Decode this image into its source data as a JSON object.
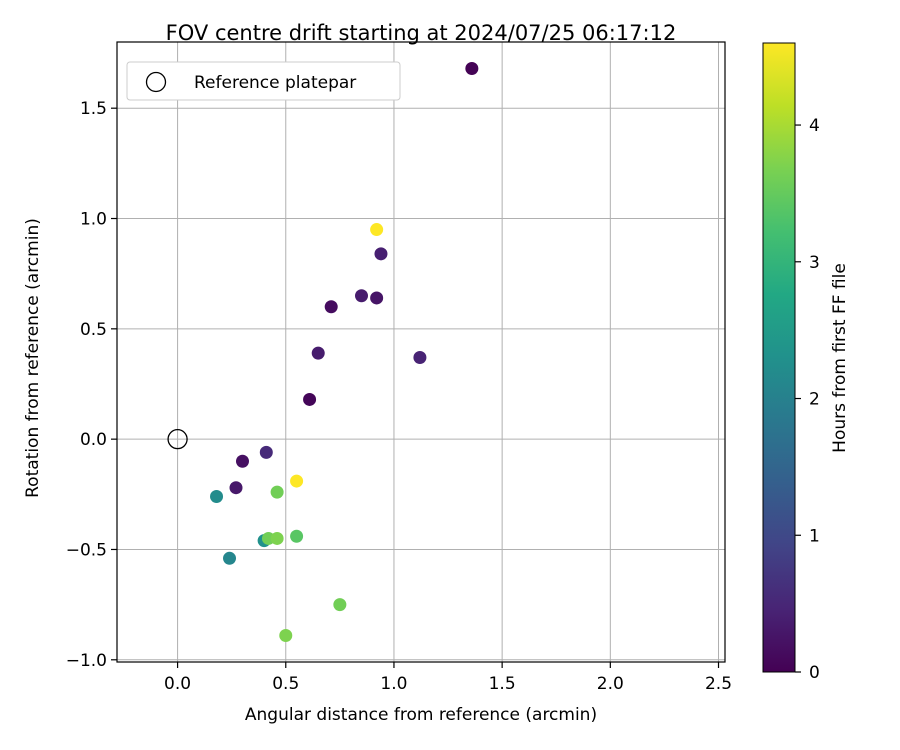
{
  "chart_data": {
    "type": "scatter",
    "title": "FOV centre drift starting at 2024/07/25 06:17:12",
    "xlabel": "Angular distance from reference (arcmin)",
    "ylabel": "Rotation from reference (arcmin)",
    "xlim": [
      -0.28,
      2.53
    ],
    "ylim": [
      -1.01,
      1.8
    ],
    "xticks": [
      0.0,
      0.5,
      1.0,
      1.5,
      2.0,
      2.5
    ],
    "xtick_labels": [
      "0.0",
      "0.5",
      "1.0",
      "1.5",
      "2.0",
      "2.5"
    ],
    "yticks": [
      -1.0,
      -0.5,
      0.0,
      0.5,
      1.0,
      1.5
    ],
    "ytick_labels": [
      "−1.0",
      "−0.5",
      "0.0",
      "0.5",
      "1.0",
      "1.5"
    ],
    "grid": true,
    "legend": {
      "position": "top-left",
      "entries": [
        "Reference platepar"
      ]
    },
    "reference_point": {
      "x": 0.0,
      "y": 0.0
    },
    "colorbar": {
      "label": "Hours from first FF file",
      "colormap": "viridis",
      "range": [
        0,
        4.6
      ],
      "ticks": [
        0,
        1,
        2,
        3,
        4
      ],
      "tick_labels": [
        "0",
        "1",
        "2",
        "3",
        "4"
      ]
    },
    "points": [
      {
        "x": 1.36,
        "y": 1.68,
        "hours": 0.02
      },
      {
        "x": 0.92,
        "y": 0.95,
        "hours": 4.6
      },
      {
        "x": 0.94,
        "y": 0.84,
        "hours": 0.4
      },
      {
        "x": 0.85,
        "y": 0.65,
        "hours": 0.35
      },
      {
        "x": 0.92,
        "y": 0.64,
        "hours": 0.25
      },
      {
        "x": 0.71,
        "y": 0.6,
        "hours": 0.15
      },
      {
        "x": 0.65,
        "y": 0.39,
        "hours": 0.35
      },
      {
        "x": 1.12,
        "y": 0.37,
        "hours": 0.45
      },
      {
        "x": 0.61,
        "y": 0.18,
        "hours": 0.05
      },
      {
        "x": 0.41,
        "y": -0.06,
        "hours": 0.55
      },
      {
        "x": 0.3,
        "y": -0.1,
        "hours": 0.2
      },
      {
        "x": 0.55,
        "y": -0.19,
        "hours": 4.6
      },
      {
        "x": 0.27,
        "y": -0.22,
        "hours": 0.3
      },
      {
        "x": 0.46,
        "y": -0.24,
        "hours": 3.6
      },
      {
        "x": 0.18,
        "y": -0.26,
        "hours": 2.2
      },
      {
        "x": 0.55,
        "y": -0.44,
        "hours": 3.4
      },
      {
        "x": 0.4,
        "y": -0.46,
        "hours": 2.3
      },
      {
        "x": 0.42,
        "y": -0.45,
        "hours": 3.6
      },
      {
        "x": 0.46,
        "y": -0.45,
        "hours": 3.7
      },
      {
        "x": 0.24,
        "y": -0.54,
        "hours": 2.1
      },
      {
        "x": 0.75,
        "y": -0.75,
        "hours": 3.6
      },
      {
        "x": 0.5,
        "y": -0.89,
        "hours": 3.7
      }
    ]
  }
}
